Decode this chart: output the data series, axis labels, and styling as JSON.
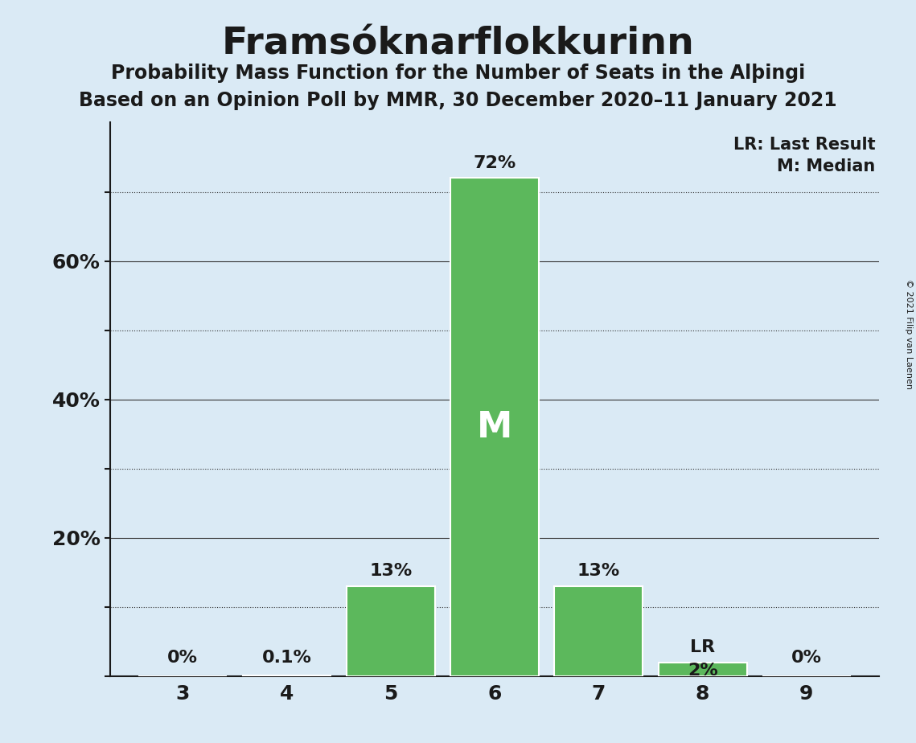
{
  "title": "Framsóknarflokkurinn",
  "subtitle1": "Probability Mass Function for the Number of Seats in the Alþingi",
  "subtitle2": "Based on an Opinion Poll by MMR, 30 December 2020–11 January 2021",
  "copyright": "© 2021 Filip van Laenen",
  "categories": [
    3,
    4,
    5,
    6,
    7,
    8,
    9
  ],
  "values": [
    0.0,
    0.1,
    13.0,
    72.0,
    13.0,
    2.0,
    0.0
  ],
  "bar_color": "#5cb85c",
  "background_color": "#daeaf5",
  "median_seat": 6,
  "lr_seat": 8,
  "labels": [
    "0%",
    "0.1%",
    "13%",
    "72%",
    "13%",
    "2%",
    "0%"
  ],
  "ylim": [
    0,
    80
  ],
  "legend_lr": "LR: Last Result",
  "legend_m": "M: Median",
  "title_fontsize": 34,
  "subtitle_fontsize": 17,
  "label_fontsize": 16,
  "axis_fontsize": 18,
  "median_label_fontsize": 32
}
